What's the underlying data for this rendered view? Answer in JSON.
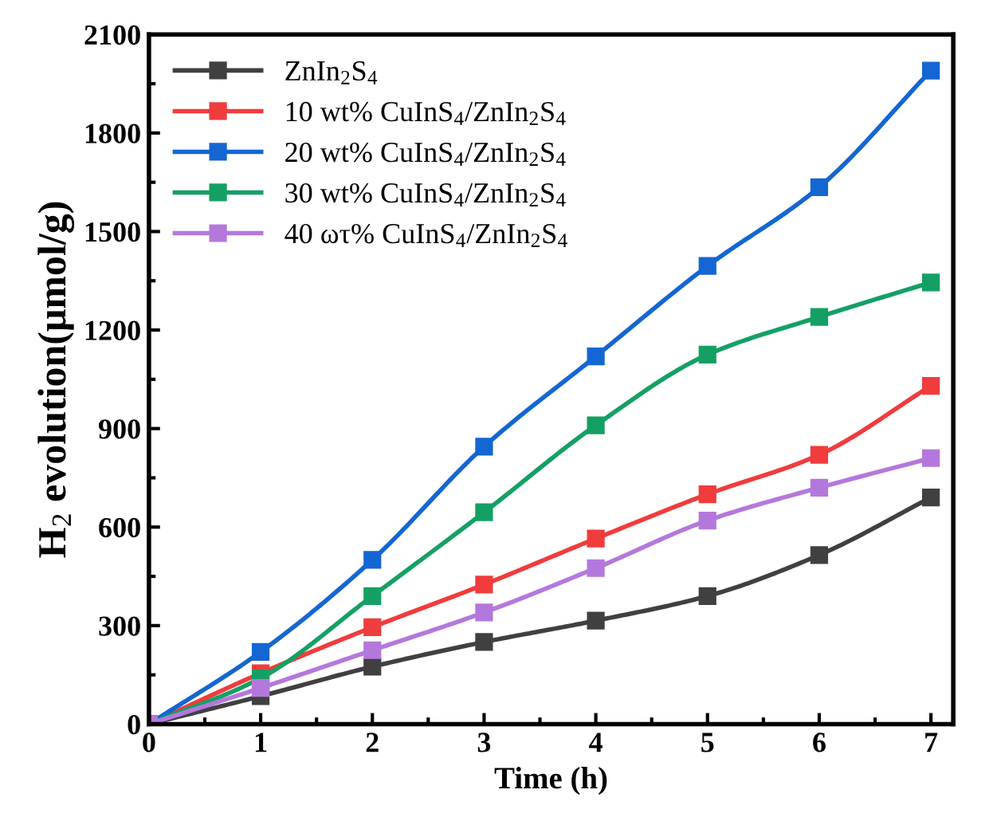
{
  "chart_data": {
    "type": "line",
    "xlabel": "Time (h)",
    "ylabel": "H$_{2}$ evolution(μmol/g)",
    "x": [
      0,
      1,
      2,
      3,
      4,
      5,
      6,
      7
    ],
    "series": [
      {
        "name": "ZnIn$_{2}$S$_{4}$",
        "color": "#404040",
        "values": [
          0,
          85,
          175,
          250,
          315,
          390,
          515,
          690
        ]
      },
      {
        "name": "10 wt% CuInS$_{4}$/ZnIn$_{2}$S$_{4}$",
        "color": "#f03c3c",
        "values": [
          0,
          155,
          295,
          425,
          565,
          700,
          820,
          1030
        ]
      },
      {
        "name": "20 wt% CuInS$_{4}$/ZnIn$_{2}$S$_{4}$",
        "color": "#1466d2",
        "values": [
          0,
          220,
          500,
          845,
          1120,
          1395,
          1635,
          1990
        ]
      },
      {
        "name": "30 wt% CuInS$_{4}$/ZnIn$_{2}$S$_{4}$",
        "color": "#14a064",
        "values": [
          0,
          140,
          390,
          645,
          910,
          1125,
          1240,
          1345
        ]
      },
      {
        "name": "40 ωτ% CuInS$_{4}$/ZnIn$_{2}$S$_{4}$",
        "color": "#b478dc",
        "values": [
          0,
          110,
          225,
          340,
          475,
          620,
          720,
          810
        ]
      }
    ],
    "xlim": [
      0,
      7.2
    ],
    "xticks": [
      0,
      1,
      2,
      3,
      4,
      5,
      6,
      7
    ],
    "ylim": [
      0,
      2100
    ],
    "yticks": [
      0,
      300,
      600,
      900,
      1200,
      1500,
      1800,
      2100
    ],
    "marker": "square",
    "line_style": "solid",
    "legend": "top left",
    "grid": false
  }
}
